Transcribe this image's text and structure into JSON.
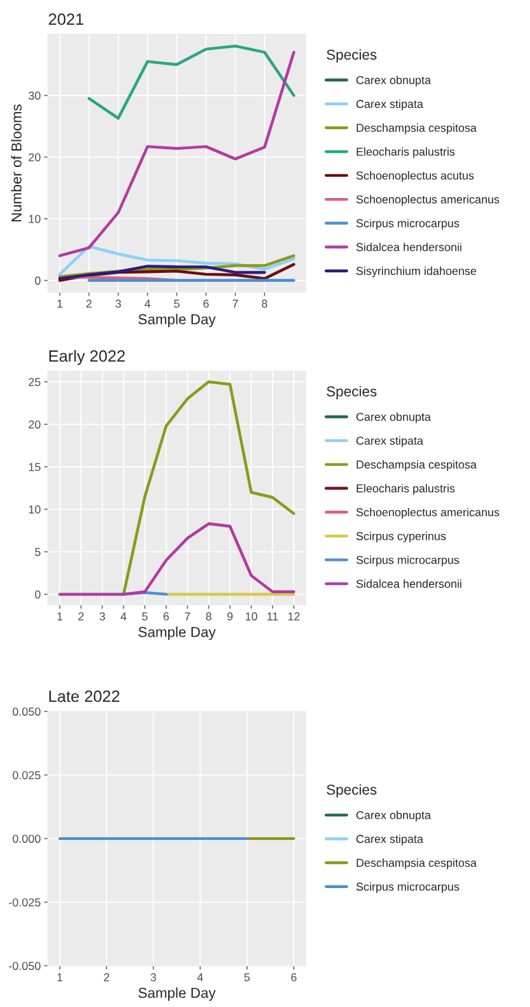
{
  "chart_data": [
    {
      "type": "line",
      "title": "2021",
      "xlabel": "Sample Day",
      "ylabel": "Number of Blooms",
      "legend_title": "Species",
      "legend": "right",
      "grid": true,
      "x": [
        1,
        2,
        3,
        4,
        5,
        6,
        7,
        8,
        9
      ],
      "xlim": [
        0.6,
        9.4
      ],
      "xticks": [
        1,
        2,
        3,
        4,
        5,
        6,
        7,
        8
      ],
      "ylim": [
        -1.9,
        39.9
      ],
      "yticks": [
        0,
        10,
        20,
        30
      ],
      "series": [
        {
          "name": "Carex obnupta",
          "color": "#1a6b45",
          "values": [
            null,
            null,
            null,
            null,
            null,
            null,
            null,
            null,
            null
          ]
        },
        {
          "name": "Carex stipata",
          "color": "#8fd0f5",
          "values": [
            1,
            5.5,
            4.3,
            3.3,
            3.2,
            2.8,
            2.7,
            1.8,
            3.5
          ]
        },
        {
          "name": "Deschampsia cespitosa",
          "color": "#8a9a1c",
          "values": [
            0.6,
            1.1,
            1.5,
            1.8,
            1.8,
            2,
            2.4,
            2.4,
            4
          ]
        },
        {
          "name": "Eleocharis palustris",
          "color": "#2aa580",
          "values": [
            null,
            29.5,
            26.3,
            35.5,
            35,
            37.5,
            38,
            37,
            30
          ]
        },
        {
          "name": "Schoenoplectus acutus",
          "color": "#6e0c0c",
          "values": [
            0,
            0.8,
            1.3,
            1.4,
            1.5,
            1,
            0.9,
            0.3,
            2.6
          ]
        },
        {
          "name": "Schoenoplectus americanus",
          "color": "#e0607a",
          "values": [
            0.5,
            0.5,
            0.4,
            0.3,
            0,
            null,
            null,
            null,
            null
          ]
        },
        {
          "name": "Scirpus microcarpus",
          "color": "#4a90d0",
          "values": [
            null,
            0,
            0,
            0,
            0,
            0,
            0,
            0,
            0
          ]
        },
        {
          "name": "Sidalcea hendersonii",
          "color": "#b23aa0",
          "values": [
            4,
            5.3,
            11,
            21.7,
            21.4,
            21.7,
            19.7,
            21.6,
            37
          ]
        },
        {
          "name": "Sisyrinchium idahoense",
          "color": "#2b1a80",
          "values": [
            0.3,
            0.9,
            1.4,
            2.3,
            2.2,
            2.2,
            1.3,
            1.3,
            null
          ]
        }
      ]
    },
    {
      "type": "line",
      "title": "Early 2022",
      "xlabel": "Sample Day",
      "legend_title": "Species",
      "legend": "right",
      "grid": true,
      "x": [
        1,
        2,
        3,
        4,
        5,
        6,
        7,
        8,
        9,
        10,
        11,
        12
      ],
      "xlim": [
        0.45,
        12.55
      ],
      "xticks": [
        1,
        2,
        3,
        4,
        5,
        6,
        7,
        8,
        9,
        10,
        11,
        12
      ],
      "ylim": [
        -1.25,
        26.25
      ],
      "yticks": [
        0,
        5,
        10,
        15,
        20,
        25
      ],
      "series": [
        {
          "name": "Carex obnupta",
          "color": "#1a6b45",
          "values": [
            null,
            null,
            null,
            null,
            null,
            null,
            null,
            null,
            null,
            null,
            null,
            null
          ]
        },
        {
          "name": "Carex stipata",
          "color": "#8fd0f5",
          "values": [
            null,
            null,
            null,
            null,
            null,
            null,
            null,
            null,
            null,
            null,
            null,
            null
          ]
        },
        {
          "name": "Deschampsia cespitosa",
          "color": "#8a9a1c",
          "values": [
            null,
            null,
            null,
            0,
            11.5,
            19.8,
            23,
            25,
            24.7,
            12,
            11.4,
            9.5
          ]
        },
        {
          "name": "Eleocharis palustris",
          "color": "#7a1020",
          "values": [
            null,
            null,
            null,
            null,
            null,
            null,
            null,
            null,
            null,
            null,
            null,
            null
          ]
        },
        {
          "name": "Schoenoplectus americanus",
          "color": "#e0607a",
          "values": [
            null,
            null,
            null,
            null,
            null,
            null,
            null,
            null,
            null,
            null,
            null,
            null
          ]
        },
        {
          "name": "Scirpus cyperinus",
          "color": "#d8c850",
          "values": [
            null,
            null,
            null,
            null,
            null,
            0,
            0,
            0,
            0,
            0,
            0,
            0
          ]
        },
        {
          "name": "Scirpus microcarpus",
          "color": "#4a90d0",
          "values": [
            null,
            null,
            null,
            0,
            0.2,
            0,
            null,
            null,
            null,
            null,
            null,
            null
          ]
        },
        {
          "name": "Sidalcea hendersonii",
          "color": "#b23aa0",
          "values": [
            0,
            0,
            0,
            0,
            0.3,
            4,
            6.6,
            8.3,
            8,
            2.2,
            0.3,
            0.3
          ]
        }
      ]
    },
    {
      "type": "line",
      "title": "Late 2022",
      "xlabel": "Sample Day",
      "legend_title": "Species",
      "legend": "right",
      "grid": true,
      "x": [
        1,
        2,
        3,
        4,
        5,
        6
      ],
      "xlim": [
        0.75,
        6.25
      ],
      "xticks": [
        1,
        2,
        3,
        4,
        5,
        6
      ],
      "ylim": [
        -0.05,
        0.05
      ],
      "yticks": [
        {
          "value": -0.05,
          "label": "-0.050"
        },
        {
          "value": -0.025,
          "label": "-0.025"
        },
        {
          "value": 0,
          "label": "0.000"
        },
        {
          "value": 0.025,
          "label": "0.025"
        },
        {
          "value": 0.05,
          "label": "0.050"
        }
      ],
      "series": [
        {
          "name": "Carex obnupta",
          "color": "#1a6b45",
          "values": [
            null,
            null,
            null,
            null,
            null,
            null
          ]
        },
        {
          "name": "Carex stipata",
          "color": "#8fd0f5",
          "values": [
            null,
            null,
            null,
            null,
            null,
            null
          ]
        },
        {
          "name": "Deschampsia cespitosa",
          "color": "#8a9a1c",
          "values": [
            null,
            null,
            null,
            null,
            0,
            0
          ]
        },
        {
          "name": "Scirpus microcarpus",
          "color": "#4a90d0",
          "values": [
            0,
            0,
            0,
            0,
            0,
            null
          ]
        }
      ]
    }
  ]
}
